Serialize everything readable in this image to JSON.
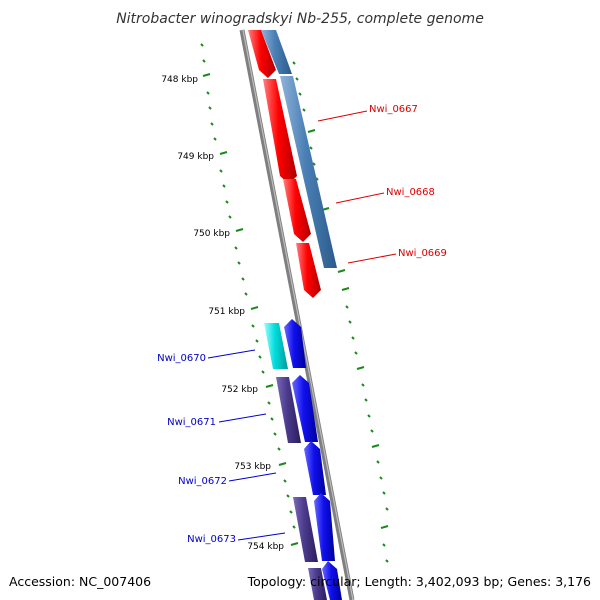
{
  "title": "Nitrobacter winogradskyi Nb-255, complete genome",
  "footer": {
    "accession": "Accession: NC_007406",
    "summary": "Topology: circular; Length: 3,402,093 bp; Genes: 3,176"
  },
  "ticks": [
    "748 kbp",
    "749 kbp",
    "750 kbp",
    "751 kbp",
    "752 kbp",
    "753 kbp",
    "754 kbp"
  ],
  "genes_forward": [
    {
      "name": "Nwi_0667",
      "color": "#dd0000"
    },
    {
      "name": "Nwi_0668",
      "color": "#dd0000"
    },
    {
      "name": "Nwi_0669",
      "color": "#dd0000"
    }
  ],
  "genes_reverse": [
    {
      "name": "Nwi_0670",
      "color": "#0000cc"
    },
    {
      "name": "Nwi_0671",
      "color": "#0000cc"
    },
    {
      "name": "Nwi_0672",
      "color": "#0000cc"
    },
    {
      "name": "Nwi_0673",
      "color": "#0000cc"
    }
  ],
  "colors": {
    "cds_forward": "#ff0000",
    "cds_reverse": "#1010ee",
    "cog_steel": "#4a7fb5",
    "cog_cyan": "#00dddd",
    "cog_purple": "#4b3a8c",
    "backbone": "#888888",
    "tick_dash": "#1a8a1a"
  }
}
